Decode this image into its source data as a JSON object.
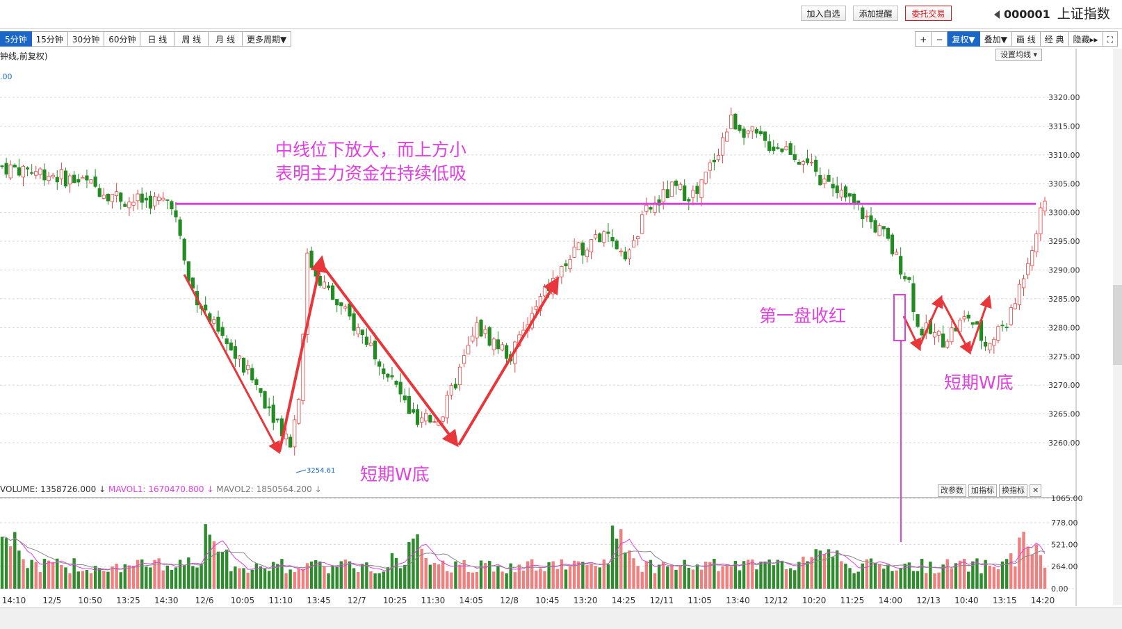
{
  "topbar": {
    "add_watch": "加入自选",
    "add_alert": "添加提醒",
    "trade": "委托交易",
    "code": "000001",
    "name": "上证指数"
  },
  "periods": [
    "5分钟",
    "15分钟",
    "30分钟",
    "60分钟",
    "日 线",
    "周 线",
    "月 线",
    "更多周期▼"
  ],
  "active_period": "5分钟",
  "right_tools": [
    "+",
    "−",
    "复权▼",
    "叠加▼",
    "画 线",
    "经 典",
    "隐藏▸▸",
    "⛶"
  ],
  "chart_label": "钟线,前复权)",
  "top_value_label": ".00",
  "set_ma_label": "设置均线",
  "annotations": {
    "main_line1": "中线位下放大，而上方小",
    "main_line2": "表明主力资金在持续低吸",
    "w1": "短期W底",
    "w2": "短期W底",
    "first_red": "第一盘收红",
    "low_label": "3254.61"
  },
  "volume_info": {
    "volume": "VOLUME: 1358726.000",
    "mavol1": "MAVOL1: 1670470.800",
    "mavol2": "MAVOL2: 1850564.200"
  },
  "vol_buttons": [
    "改参数",
    "加指标",
    "换指标",
    "✕"
  ],
  "colors": {
    "up": "#e84141",
    "down": "#228B22",
    "magenta": "#e040e0",
    "arrow": "#e8363a",
    "mavol1": "#e040e0",
    "mavol2": "#888888"
  },
  "chart_data": {
    "type": "candlestick",
    "y_ticks": [
      "3320.00",
      "3315.00",
      "3310.00",
      "3305.00",
      "3300.00",
      "3295.00",
      "3290.00",
      "3285.00",
      "3280.00",
      "3275.00",
      "3270.00",
      "3265.00",
      "3260.00"
    ],
    "ylim": [
      3250,
      3325
    ],
    "x_ticks": [
      "14:10",
      "12/5",
      "10:50",
      "13:25",
      "14:30",
      "12/6",
      "10:05",
      "11:10",
      "13:45",
      "12/7",
      "10:25",
      "11:30",
      "14:05",
      "12/8",
      "10:45",
      "13:20",
      "14:25",
      "12/11",
      "11:05",
      "13:40",
      "12/12",
      "10:20",
      "11:25",
      "14:00",
      "12/13",
      "10:40",
      "13:15",
      "14:20"
    ],
    "close_path": [
      [
        0,
        3308
      ],
      [
        10,
        3307
      ],
      [
        20,
        3305
      ],
      [
        30,
        3302
      ],
      [
        40,
        3302
      ],
      [
        44,
        3288
      ],
      [
        50,
        3280
      ],
      [
        60,
        3270
      ],
      [
        68,
        3260
      ],
      [
        70,
        3268
      ],
      [
        72,
        3292
      ],
      [
        78,
        3285
      ],
      [
        88,
        3276
      ],
      [
        98,
        3263
      ],
      [
        104,
        3265
      ],
      [
        112,
        3280
      ],
      [
        120,
        3275
      ],
      [
        128,
        3286
      ],
      [
        134,
        3292
      ],
      [
        140,
        3296
      ],
      [
        148,
        3293
      ],
      [
        152,
        3300
      ],
      [
        158,
        3304
      ],
      [
        164,
        3303
      ],
      [
        172,
        3316
      ],
      [
        180,
        3312
      ],
      [
        186,
        3311
      ],
      [
        194,
        3305
      ],
      [
        200,
        3302
      ],
      [
        208,
        3296
      ],
      [
        214,
        3288
      ],
      [
        216,
        3280
      ],
      [
        222,
        3278
      ],
      [
        228,
        3282
      ],
      [
        232,
        3277
      ],
      [
        238,
        3282
      ],
      [
        242,
        3292
      ],
      [
        246,
        3302
      ]
    ],
    "low_point": {
      "label": "3254.61",
      "value": 3254.61
    },
    "horizontal_line": 3301.5,
    "volume_ticks": [
      "1065.00",
      "778.00",
      "521.00",
      "264.00",
      "0.00"
    ],
    "volume_max": 1065
  }
}
